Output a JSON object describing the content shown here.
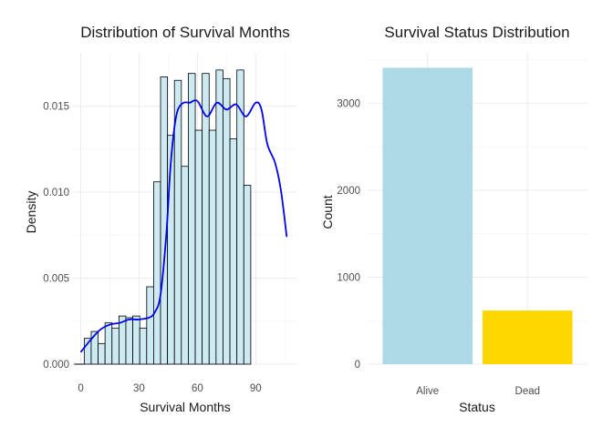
{
  "chart_data": [
    {
      "type": "bar",
      "subtype": "histogram-with-density",
      "title": "Distribution of Survival Months",
      "xlabel": "Survival Months",
      "ylabel": "Density",
      "xlim": [
        -4,
        111
      ],
      "ylim": [
        0,
        0.0181
      ],
      "xticks": [
        0,
        30,
        60,
        90
      ],
      "yticks": [
        0,
        0.005,
        0.01,
        0.015
      ],
      "ytick_labels": [
        "0.000",
        "0.005",
        "0.010",
        "0.015"
      ],
      "grid": true,
      "bin_width": 3.57,
      "bin_start": 1.8,
      "bar_fill": "#cdeaf3",
      "bar_stroke": "#000000",
      "density_color": "#0000ee",
      "densities": [
        0.0015,
        0.0019,
        0.0012,
        0.0024,
        0.0021,
        0.0028,
        0.0027,
        0.0028,
        0.0021,
        0.0045,
        0.0106,
        0.0167,
        0.0133,
        0.0165,
        0.0115,
        0.0169,
        0.0136,
        0.0169,
        0.0136,
        0.0171,
        0.0166,
        0.0131,
        0.0171,
        0.0104
      ],
      "density_curve": {
        "x": [
          0,
          5,
          10,
          15,
          20,
          25,
          30,
          35,
          38,
          41,
          44,
          46,
          48,
          50,
          53,
          56,
          60,
          65,
          70,
          75,
          80,
          85,
          90,
          93,
          96,
          100,
          103,
          106
        ],
        "y": [
          0.0007,
          0.0014,
          0.002,
          0.0023,
          0.0024,
          0.0026,
          0.0026,
          0.0027,
          0.003,
          0.004,
          0.0075,
          0.0112,
          0.0136,
          0.0148,
          0.0152,
          0.0152,
          0.0153,
          0.0144,
          0.0152,
          0.0148,
          0.0151,
          0.0144,
          0.0152,
          0.0148,
          0.0128,
          0.0117,
          0.0101,
          0.0074
        ]
      }
    },
    {
      "type": "bar",
      "title": "Survival Status Distribution",
      "xlabel": "Status",
      "ylabel": "Count",
      "categories": [
        "Alive",
        "Dead"
      ],
      "values": [
        3408,
        616
      ],
      "colors": [
        "#add8e6",
        "#ffd700"
      ],
      "ylim": [
        0,
        3580
      ],
      "yticks": [
        0,
        1000,
        2000,
        3000
      ],
      "ytick_labels": [
        "0",
        "1000",
        "2000",
        "3000"
      ],
      "grid": true
    }
  ]
}
